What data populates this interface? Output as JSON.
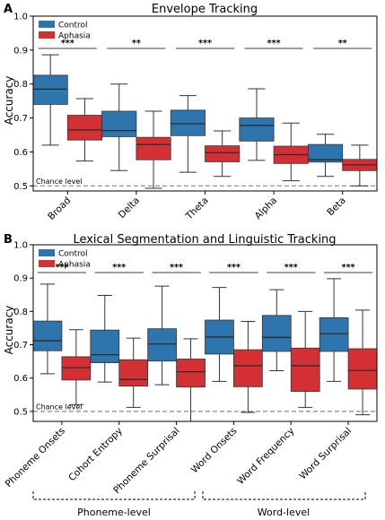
{
  "colors": {
    "control": "#2e75ad",
    "aphasia": "#d43034",
    "median": "#2b2b2b",
    "chance": "#888888"
  },
  "chart_data": [
    {
      "panel": "A",
      "type": "box",
      "title": "Envelope Tracking",
      "ylabel": "Accuracy",
      "ylim": [
        0.485,
        1.0
      ],
      "yticks": [
        "0.5",
        "0.6",
        "0.7",
        "0.8",
        "0.9",
        "1.0"
      ],
      "chance": {
        "value": 0.5,
        "label": "Chance level"
      },
      "legend": {
        "position": "top-left",
        "entries": [
          "Control",
          "Aphasia"
        ]
      },
      "categories": [
        "Broad",
        "Delta",
        "Theta",
        "Alpha",
        "Beta"
      ],
      "significance": [
        "***",
        "**",
        "***",
        "***",
        "**"
      ],
      "series": [
        {
          "name": "Control",
          "boxes": [
            {
              "wl": 0.62,
              "q1": 0.74,
              "med": 0.785,
              "q3": 0.826,
              "wh": 0.886
            },
            {
              "wl": 0.545,
              "q1": 0.645,
              "med": 0.663,
              "q3": 0.72,
              "wh": 0.8
            },
            {
              "wl": 0.54,
              "q1": 0.648,
              "med": 0.683,
              "q3": 0.723,
              "wh": 0.766
            },
            {
              "wl": 0.575,
              "q1": 0.632,
              "med": 0.678,
              "q3": 0.7,
              "wh": 0.786
            },
            {
              "wl": 0.528,
              "q1": 0.57,
              "med": 0.577,
              "q3": 0.622,
              "wh": 0.652
            }
          ]
        },
        {
          "name": "Aphasia",
          "boxes": [
            {
              "wl": 0.573,
              "q1": 0.635,
              "med": 0.665,
              "q3": 0.708,
              "wh": 0.757
            },
            {
              "wl": 0.493,
              "q1": 0.577,
              "med": 0.622,
              "q3": 0.643,
              "wh": 0.72
            },
            {
              "wl": 0.528,
              "q1": 0.571,
              "med": 0.598,
              "q3": 0.618,
              "wh": 0.662
            },
            {
              "wl": 0.515,
              "q1": 0.566,
              "med": 0.592,
              "q3": 0.617,
              "wh": 0.685
            },
            {
              "wl": 0.5,
              "q1": 0.545,
              "med": 0.562,
              "q3": 0.578,
              "wh": 0.62
            }
          ]
        }
      ]
    },
    {
      "panel": "B",
      "type": "box",
      "title": "Lexical Segmentation and Linguistic Tracking",
      "ylabel": "Accuracy",
      "ylim": [
        0.47,
        1.0
      ],
      "yticks": [
        "0.5",
        "0.6",
        "0.7",
        "0.8",
        "0.9",
        "1.0"
      ],
      "chance": {
        "value": 0.5,
        "label": "Chance level"
      },
      "legend": {
        "position": "top-left",
        "entries": [
          "Control",
          "Aphasia"
        ]
      },
      "categories": [
        "Phoneme Onsets",
        "Cohort Entropy",
        "Phoneme Surprisal",
        "Word Onsets",
        "Word Frequency",
        "Word Surprisal"
      ],
      "significance": [
        "***",
        "***",
        "***",
        "***",
        "***",
        "***"
      ],
      "groups": [
        "Phoneme-level",
        "Word-level"
      ],
      "series": [
        {
          "name": "Control",
          "boxes": [
            {
              "wl": 0.613,
              "q1": 0.682,
              "med": 0.712,
              "q3": 0.771,
              "wh": 0.882
            },
            {
              "wl": 0.588,
              "q1": 0.646,
              "med": 0.67,
              "q3": 0.744,
              "wh": 0.848
            },
            {
              "wl": 0.58,
              "q1": 0.651,
              "med": 0.702,
              "q3": 0.748,
              "wh": 0.876
            },
            {
              "wl": 0.59,
              "q1": 0.672,
              "med": 0.723,
              "q3": 0.774,
              "wh": 0.872
            },
            {
              "wl": 0.622,
              "q1": 0.68,
              "med": 0.722,
              "q3": 0.788,
              "wh": 0.865
            },
            {
              "wl": 0.59,
              "q1": 0.68,
              "med": 0.733,
              "q3": 0.781,
              "wh": 0.898
            }
          ]
        },
        {
          "name": "Aphasia",
          "boxes": [
            {
              "wl": 0.52,
              "q1": 0.594,
              "med": 0.631,
              "q3": 0.664,
              "wh": 0.745
            },
            {
              "wl": 0.512,
              "q1": 0.576,
              "med": 0.596,
              "q3": 0.655,
              "wh": 0.72
            },
            {
              "wl": 0.47,
              "q1": 0.573,
              "med": 0.619,
              "q3": 0.657,
              "wh": 0.718
            },
            {
              "wl": 0.497,
              "q1": 0.574,
              "med": 0.637,
              "q3": 0.685,
              "wh": 0.77
            },
            {
              "wl": 0.512,
              "q1": 0.56,
              "med": 0.637,
              "q3": 0.69,
              "wh": 0.8
            },
            {
              "wl": 0.49,
              "q1": 0.567,
              "med": 0.623,
              "q3": 0.688,
              "wh": 0.804
            }
          ]
        }
      ]
    }
  ]
}
